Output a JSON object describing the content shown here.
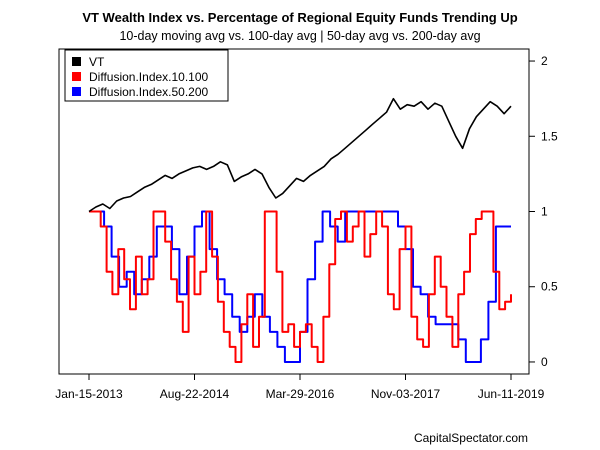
{
  "chart_data": {
    "type": "line",
    "title": "VT Wealth Index vs. Percentage of Regional Equity Funds Trending Up",
    "subtitle": "10-day moving avg vs. 100-day avg | 50-day avg vs. 200-day avg",
    "x_tick_labels": [
      "Jan-15-2013",
      "Aug-22-2014",
      "Mar-29-2016",
      "Nov-03-2017",
      "Jun-11-2019"
    ],
    "y_tick_labels": [
      "0",
      "0.5",
      "1",
      "1.5",
      "2"
    ],
    "y_ticks": [
      0,
      0.5,
      1,
      1.5,
      2
    ],
    "ylim": [
      -0.08,
      2.08
    ],
    "grid": false,
    "legend_position": "top-left",
    "credit": "CapitalSpectator.com",
    "series": [
      {
        "name": "VT",
        "color": "#000000",
        "values": [
          1.0,
          1.03,
          1.05,
          1.02,
          1.07,
          1.09,
          1.1,
          1.13,
          1.16,
          1.18,
          1.21,
          1.24,
          1.22,
          1.25,
          1.27,
          1.29,
          1.3,
          1.28,
          1.3,
          1.33,
          1.31,
          1.2,
          1.23,
          1.25,
          1.28,
          1.25,
          1.16,
          1.09,
          1.12,
          1.17,
          1.22,
          1.2,
          1.24,
          1.27,
          1.3,
          1.35,
          1.38,
          1.42,
          1.46,
          1.5,
          1.54,
          1.58,
          1.62,
          1.66,
          1.75,
          1.68,
          1.71,
          1.7,
          1.73,
          1.68,
          1.72,
          1.7,
          1.6,
          1.5,
          1.42,
          1.55,
          1.63,
          1.68,
          1.73,
          1.7,
          1.65,
          1.7
        ]
      },
      {
        "name": "Diffusion.Index.10.100",
        "color": "#ff0000",
        "values": [
          1.0,
          1.0,
          0.9,
          0.6,
          0.45,
          0.75,
          0.55,
          0.35,
          0.7,
          0.45,
          0.55,
          1.0,
          1.0,
          0.8,
          0.55,
          0.4,
          0.2,
          0.7,
          0.45,
          0.6,
          1.0,
          0.7,
          0.4,
          0.2,
          0.1,
          0.0,
          0.25,
          0.45,
          0.1,
          0.3,
          1.0,
          1.0,
          0.6,
          0.2,
          0.25,
          0.1,
          0.2,
          0.25,
          0.1,
          0.0,
          0.3,
          0.65,
          0.95,
          1.0,
          0.8,
          0.9,
          1.0,
          0.7,
          0.85,
          1.0,
          0.9,
          0.45,
          0.35,
          0.75,
          0.9,
          0.3,
          0.15,
          0.1,
          0.45,
          0.7,
          0.5,
          0.3,
          0.1,
          0.45,
          0.6,
          0.85,
          0.95,
          1.0,
          1.0,
          0.6,
          0.35,
          0.4,
          0.45
        ]
      },
      {
        "name": "Diffusion.Index.50.200",
        "color": "#0000ff",
        "values": [
          1.0,
          1.0,
          0.9,
          0.7,
          0.5,
          0.6,
          0.45,
          0.55,
          0.7,
          0.9,
          0.9,
          0.75,
          0.45,
          0.7,
          0.9,
          1.0,
          0.75,
          0.55,
          0.45,
          0.3,
          0.2,
          0.3,
          0.45,
          0.3,
          0.2,
          0.1,
          0.0,
          0.0,
          0.2,
          0.55,
          0.8,
          1.0,
          0.9,
          0.8,
          1.0,
          1.0,
          1.0,
          1.0,
          1.0,
          1.0,
          1.0,
          0.9,
          0.75,
          0.5,
          0.45,
          0.3,
          0.25,
          0.25,
          0.25,
          0.15,
          0.0,
          0.0,
          0.15,
          0.4,
          0.9,
          0.9,
          0.9
        ]
      }
    ]
  }
}
